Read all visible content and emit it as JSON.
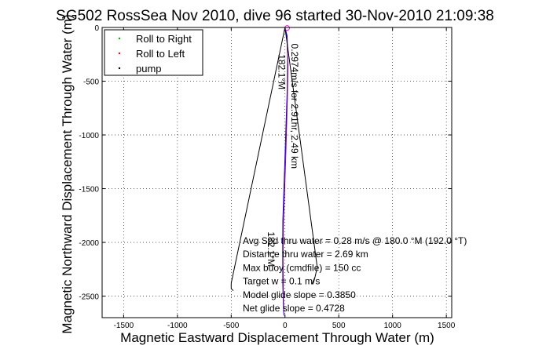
{
  "chart_data": {
    "type": "line",
    "title": "SG502 RossSea Nov 2010, dive 96 started 30-Nov-2010 21:09:38",
    "xlabel": "Magnetic Eastward Displacement Through Water (m)",
    "ylabel": "Magnetic Northward Displacement Through Water (m)",
    "xlim": [
      -1700,
      1550
    ],
    "ylim": [
      -2700,
      0
    ],
    "xticks": [
      -1500,
      -1000,
      -500,
      0,
      500,
      1000,
      1500
    ],
    "yticks": [
      0,
      -500,
      -1000,
      -1500,
      -2000,
      -2500
    ],
    "xtick_labels": [
      "-1500",
      "-1000",
      "-500",
      "0",
      "500",
      "1000",
      "1500"
    ],
    "ytick_labels": [
      "0",
      "-500",
      "-1000",
      "-1500",
      "-2000",
      "-2500"
    ],
    "grid": true,
    "legend_placement": "top-left",
    "legend": [
      {
        "label": "Roll to Right",
        "color": "#00aa00",
        "marker": "dot"
      },
      {
        "label": "Roll to Left",
        "color": "#ff0000",
        "marker": "dot"
      },
      {
        "label": "pump",
        "color": "#000000",
        "marker": "dot"
      }
    ],
    "series": [
      {
        "color": "#0000ff",
        "x": [
          0,
          20,
          25,
          20,
          10,
          0,
          -10,
          -20,
          -22,
          -20,
          -15,
          -10
        ],
        "y": [
          0,
          -80,
          -300,
          -600,
          -900,
          -1200,
          -1500,
          -1800,
          -2100,
          -2400,
          -2600,
          -2680
        ]
      },
      {
        "color": "#800080",
        "x": [
          0,
          18,
          28,
          22,
          14,
          5,
          -5,
          -15,
          -18,
          -16,
          -12
        ],
        "y": [
          -20,
          -100,
          -350,
          -650,
          -950,
          -1250,
          -1550,
          -1850,
          -2150,
          -2450,
          -2650
        ]
      },
      {
        "color": "#000000",
        "x": [
          0,
          -500,
          -500,
          -480
        ],
        "y": [
          0,
          -2380,
          -2430,
          -2450
        ]
      },
      {
        "color": "#000000",
        "x": [
          0,
          300,
          280,
          250
        ],
        "y": [
          0,
          -2230,
          -2320,
          -2390
        ]
      }
    ],
    "annotations": [
      {
        "text": "182.1°M",
        "x": -60,
        "y": -250,
        "rotation": 90
      },
      {
        "text": "0.2974m/s for 2.91hr, 2.49 km",
        "x": 60,
        "y": -150,
        "rotation": 90
      },
      {
        "text": "182.1°M",
        "x": -160,
        "y": -1900,
        "rotation": 90
      }
    ],
    "markers": [
      {
        "x": 20,
        "y": -5,
        "color": "#ff00ff"
      }
    ],
    "text_block": [
      "Avg Spd thru water =  0.28 m/s @ 180.0    °M (192.0 °T)",
      "Distance thru water =  2.69 km",
      "Max buoy (cmdfile) = 150 cc",
      "Target w = 0.1 m/s",
      "Model glide slope = 0.3850",
      "Net glide slope = 0.4728"
    ]
  }
}
